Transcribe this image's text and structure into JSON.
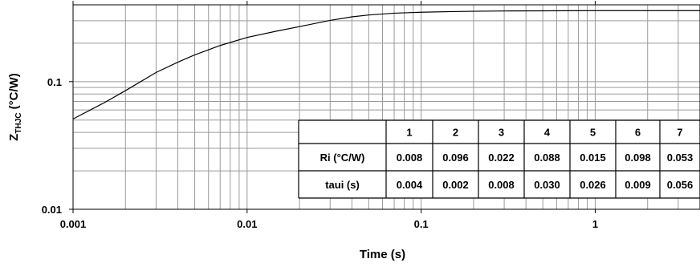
{
  "chart_data": {
    "type": "line",
    "xscale": "log",
    "yscale": "log",
    "xlim": [
      0.001,
      4.0
    ],
    "ylim": [
      0.01,
      0.4
    ],
    "grid": true,
    "xlabel": "Time (s)",
    "ylabel_main": "Z",
    "ylabel_sub": "THJC",
    "ylabel_unit": " (°C/W)",
    "x_ticks": [
      0.001,
      0.01,
      0.1,
      1
    ],
    "x_tick_labels": [
      "0.001",
      "0.01",
      "0.1",
      "1"
    ],
    "y_ticks": [
      0.01,
      0.1
    ],
    "y_tick_labels": [
      "0.01",
      "0.1"
    ],
    "series": [
      {
        "x": [
          0.001,
          0.0015,
          0.002,
          0.003,
          0.004,
          0.005,
          0.007,
          0.01,
          0.015,
          0.02,
          0.03,
          0.04,
          0.05,
          0.07,
          0.1,
          0.15,
          0.2,
          0.3,
          0.5,
          1,
          2,
          4
        ],
        "y": [
          0.051,
          0.068,
          0.085,
          0.118,
          0.142,
          0.162,
          0.192,
          0.222,
          0.25,
          0.27,
          0.302,
          0.322,
          0.333,
          0.344,
          0.35,
          0.354,
          0.356,
          0.358,
          0.359,
          0.36,
          0.36,
          0.36
        ]
      }
    ],
    "table": {
      "columns": [
        "",
        "1",
        "2",
        "3",
        "4",
        "5",
        "6",
        "7"
      ],
      "rows": [
        {
          "label": "Ri (°C/W)",
          "values": [
            "0.008",
            "0.096",
            "0.022",
            "0.088",
            "0.015",
            "0.098",
            "0.053"
          ]
        },
        {
          "label": "taui (s)",
          "values": [
            "0.004",
            "0.002",
            "0.008",
            "0.030",
            "0.026",
            "0.009",
            "0.056"
          ]
        }
      ]
    }
  },
  "colors": {
    "grid": "#9a9a9a",
    "line": "#000000",
    "border": "#000000"
  }
}
